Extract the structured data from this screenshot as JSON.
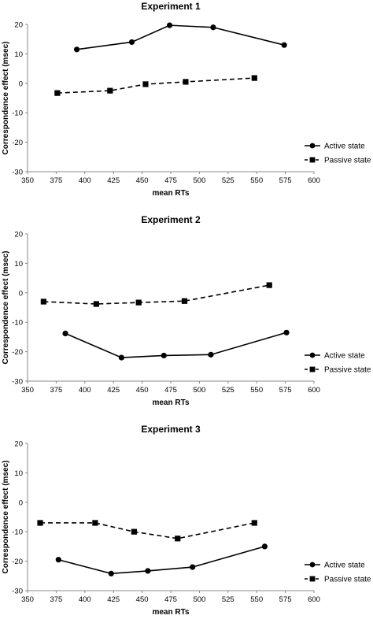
{
  "chart_data": [
    {
      "type": "line",
      "title": "Experiment 1",
      "xlabel": "mean RTs",
      "ylabel": "Correspondence effect (msec)",
      "xlim": [
        350,
        600
      ],
      "ylim": [
        -30,
        20
      ],
      "xticks": [
        "350",
        "375",
        "400",
        "425",
        "450",
        "475",
        "500",
        "525",
        "550",
        "575",
        "600"
      ],
      "yticks": [
        "20",
        "10",
        "0",
        "-10",
        "-20",
        "-30"
      ],
      "legend_position": "bottom-right",
      "grid": false,
      "series": [
        {
          "name": "Active state",
          "marker": "circle",
          "dash": "solid",
          "x": [
            393,
            441,
            474,
            512,
            574
          ],
          "y": [
            11.5,
            14,
            19.7,
            19,
            13
          ]
        },
        {
          "name": "Passive state",
          "marker": "square",
          "dash": "dashed",
          "x": [
            376,
            422,
            453,
            488,
            548
          ],
          "y": [
            -3.3,
            -2.5,
            -0.3,
            0.5,
            1.8
          ]
        }
      ]
    },
    {
      "type": "line",
      "title": "Experiment 2",
      "xlabel": "mean RTs",
      "ylabel": "Correspondence effect (msec)",
      "xlim": [
        350,
        600
      ],
      "ylim": [
        -30,
        20
      ],
      "xticks": [
        "350",
        "375",
        "400",
        "425",
        "450",
        "475",
        "500",
        "525",
        "550",
        "575",
        "600"
      ],
      "yticks": [
        "20",
        "10",
        "0",
        "-10",
        "-20",
        "-30"
      ],
      "legend_position": "bottom-right",
      "grid": false,
      "series": [
        {
          "name": "Active state",
          "marker": "circle",
          "dash": "solid",
          "x": [
            383,
            432,
            469,
            510,
            576
          ],
          "y": [
            -13.8,
            -22,
            -21.3,
            -21,
            -13.5
          ]
        },
        {
          "name": "Passive state",
          "marker": "square",
          "dash": "dashed",
          "x": [
            364,
            410,
            447,
            487,
            561
          ],
          "y": [
            -3,
            -3.8,
            -3.3,
            -2.8,
            2.6
          ]
        }
      ]
    },
    {
      "type": "line",
      "title": "Experiment 3",
      "xlabel": "mean RTs",
      "ylabel": "Correspondence effect (msec)",
      "xlim": [
        350,
        600
      ],
      "ylim": [
        -30,
        20
      ],
      "xticks": [
        "350",
        "375",
        "400",
        "425",
        "450",
        "475",
        "500",
        "525",
        "550",
        "575",
        "600"
      ],
      "yticks": [
        "20",
        "10",
        "0",
        "-10",
        "-20",
        "-30"
      ],
      "legend_position": "bottom-right",
      "grid": false,
      "series": [
        {
          "name": "Active state",
          "marker": "circle",
          "dash": "solid",
          "x": [
            377,
            423,
            455,
            494,
            557
          ],
          "y": [
            -19.5,
            -24.2,
            -23.3,
            -22,
            -15
          ]
        },
        {
          "name": "Passive state",
          "marker": "square",
          "dash": "dashed",
          "x": [
            361,
            409,
            443,
            481,
            548
          ],
          "y": [
            -7,
            -7,
            -10,
            -12.3,
            -7
          ]
        }
      ]
    }
  ]
}
